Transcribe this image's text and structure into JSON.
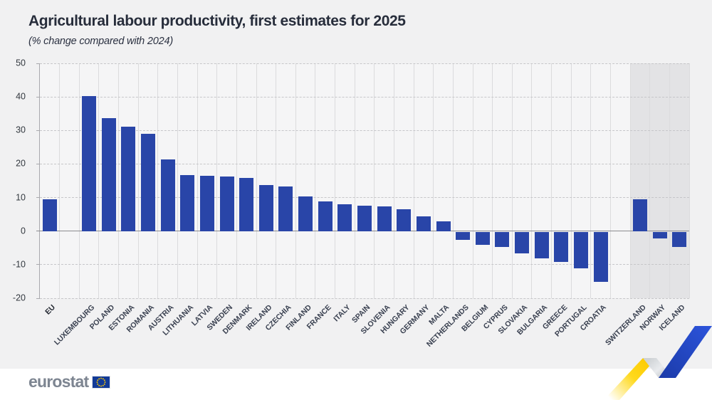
{
  "header": {
    "title": "Agricultural labour productivity, first estimates for 2025",
    "subtitle": "(% change compared with 2024)"
  },
  "chart_data": {
    "type": "bar",
    "title": "Agricultural labour productivity, first estimates for 2025",
    "subtitle": "(% change compared with 2024)",
    "unit": "% change",
    "ylim": [
      -20,
      50
    ],
    "yticks": [
      50,
      40,
      30,
      20,
      10,
      0,
      -10,
      -20
    ],
    "grid": "horizontal-dashed, vertical-column-separators",
    "legend_position": "none",
    "bar_color": "#2945a8",
    "shaded_region_color": "#e3e3e5",
    "gaps_after": [
      "EU",
      "CROATIA"
    ],
    "series_items": [
      {
        "label": "EU",
        "value": 9.5,
        "group": "eu-aggregate",
        "emphasis": true
      },
      {
        "label": "LUXEMBOURG",
        "value": 40.3,
        "group": "eu-member"
      },
      {
        "label": "POLAND",
        "value": 33.6,
        "group": "eu-member"
      },
      {
        "label": "ESTONIA",
        "value": 31.1,
        "group": "eu-member"
      },
      {
        "label": "ROMANIA",
        "value": 28.9,
        "group": "eu-member"
      },
      {
        "label": "AUSTRIA",
        "value": 21.3,
        "group": "eu-member"
      },
      {
        "label": "LITHUANIA",
        "value": 16.8,
        "group": "eu-member"
      },
      {
        "label": "LATVIA",
        "value": 16.4,
        "group": "eu-member"
      },
      {
        "label": "SWEDEN",
        "value": 16.3,
        "group": "eu-member"
      },
      {
        "label": "DENMARK",
        "value": 15.9,
        "group": "eu-member"
      },
      {
        "label": "IRELAND",
        "value": 13.7,
        "group": "eu-member"
      },
      {
        "label": "CZECHIA",
        "value": 13.3,
        "group": "eu-member"
      },
      {
        "label": "FINLAND",
        "value": 10.3,
        "group": "eu-member"
      },
      {
        "label": "FRANCE",
        "value": 8.8,
        "group": "eu-member"
      },
      {
        "label": "ITALY",
        "value": 8.0,
        "group": "eu-member"
      },
      {
        "label": "SPAIN",
        "value": 7.5,
        "group": "eu-member"
      },
      {
        "label": "SLOVENIA",
        "value": 7.4,
        "group": "eu-member"
      },
      {
        "label": "HUNGARY",
        "value": 6.6,
        "group": "eu-member"
      },
      {
        "label": "GERMANY",
        "value": 4.5,
        "group": "eu-member"
      },
      {
        "label": "MALTA",
        "value": 3.0,
        "group": "eu-member"
      },
      {
        "label": "NETHERLANDS",
        "value": -2.4,
        "group": "eu-member"
      },
      {
        "label": "BELGIUM",
        "value": -3.8,
        "group": "eu-member"
      },
      {
        "label": "CYPRUS",
        "value": -4.6,
        "group": "eu-member"
      },
      {
        "label": "SLOVAKIA",
        "value": -6.5,
        "group": "eu-member"
      },
      {
        "label": "BULGARIA",
        "value": -7.9,
        "group": "eu-member"
      },
      {
        "label": "GREECE",
        "value": -8.9,
        "group": "eu-member"
      },
      {
        "label": "PORTUGAL",
        "value": -10.8,
        "group": "eu-member"
      },
      {
        "label": "CROATIA",
        "value": -15.0,
        "group": "eu-member"
      },
      {
        "label": "SWITZERLAND",
        "value": 9.4,
        "group": "efta",
        "shaded": true
      },
      {
        "label": "NORWAY",
        "value": -1.9,
        "group": "efta",
        "shaded": true
      },
      {
        "label": "ICELAND",
        "value": -4.6,
        "group": "efta",
        "shaded": true
      }
    ]
  },
  "footer": {
    "logo_text": "eurostat"
  },
  "colors": {
    "page_background": "#f1f1f2",
    "plot_background": "#f5f5f6",
    "bar_blue": "#2945a8",
    "title_text": "#272d3b",
    "logo_gray": "#7d8591",
    "flag_blue": "#123a97",
    "flag_star_yellow": "#ffcc00",
    "ribbon_yellow": "#ffd617",
    "ribbon_blue": "#2148c8"
  }
}
